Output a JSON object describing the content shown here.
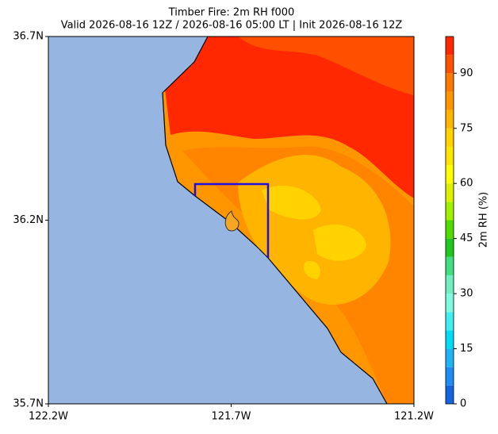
{
  "chart_data": {
    "type": "map",
    "title": "Timber Fire: 2m RH f000",
    "subtitle": "Valid 2026-08-16 12Z / 2026-08-16 05:00 LT | Init 2026-08-16 12Z",
    "xlim": [
      -122.2,
      -121.2
    ],
    "xticks": [
      {
        "value": -122.2,
        "label": "122.2W"
      },
      {
        "value": -121.7,
        "label": "121.7W"
      },
      {
        "value": -121.2,
        "label": "121.2W"
      }
    ],
    "ylim": [
      35.7,
      36.7
    ],
    "yticks": [
      {
        "value": 35.7,
        "label": "35.7N"
      },
      {
        "value": 36.2,
        "label": "36.2N"
      },
      {
        "value": 36.7,
        "label": "36.7N"
      }
    ],
    "colorbar": {
      "label": "2m RH (%)",
      "lim": [
        0,
        100
      ],
      "ticks": [
        0,
        15,
        30,
        45,
        60,
        75,
        90
      ],
      "levels": [
        0,
        5,
        10,
        15,
        20,
        25,
        30,
        35,
        40,
        45,
        50,
        55,
        60,
        65,
        70,
        75,
        80,
        85,
        90,
        95,
        100
      ],
      "colors": [
        "#1466e0",
        "#1e8cf5",
        "#1eb4f5",
        "#00dcf5",
        "#40f0f0",
        "#80fae0",
        "#70f0c0",
        "#40e080",
        "#1ec81e",
        "#50dc00",
        "#a0f000",
        "#dcf000",
        "#ffff00",
        "#ffe600",
        "#ffd200",
        "#ffb400",
        "#ff9600",
        "#ff7800",
        "#ff5000",
        "#ff2800"
      ]
    }
  }
}
